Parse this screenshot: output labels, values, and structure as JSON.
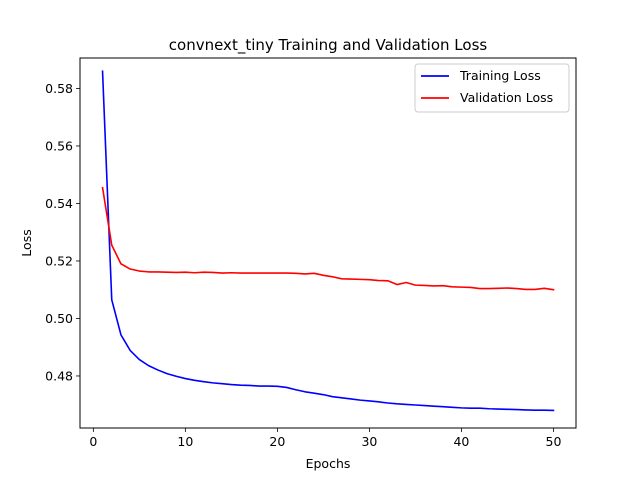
{
  "chart_data": {
    "type": "line",
    "title": "convnext_tiny Training and Validation Loss",
    "xlabel": "Epochs",
    "ylabel": "Loss",
    "xlim": [
      -1.45,
      52.45
    ],
    "ylim": [
      0.4619,
      0.5906
    ],
    "xticks": [
      0,
      10,
      20,
      30,
      40,
      50
    ],
    "yticks": [
      0.48,
      0.5,
      0.52,
      0.54,
      0.56,
      0.58
    ],
    "ytick_labels": [
      "0.48",
      "0.50",
      "0.52",
      "0.54",
      "0.56",
      "0.58"
    ],
    "grid": false,
    "legend_position": "upper right",
    "x": [
      1,
      2,
      3,
      4,
      5,
      6,
      7,
      8,
      9,
      10,
      11,
      12,
      13,
      14,
      15,
      16,
      17,
      18,
      19,
      20,
      21,
      22,
      23,
      24,
      25,
      26,
      27,
      28,
      29,
      30,
      31,
      32,
      33,
      34,
      35,
      36,
      37,
      38,
      39,
      40,
      41,
      42,
      43,
      44,
      45,
      46,
      47,
      48,
      49,
      50
    ],
    "series": [
      {
        "name": "Training Loss",
        "color": "#0000ff",
        "values": [
          0.586,
          0.5065,
          0.4943,
          0.4889,
          0.4857,
          0.4836,
          0.4821,
          0.4808,
          0.4799,
          0.4791,
          0.4785,
          0.478,
          0.4776,
          0.4773,
          0.477,
          0.4768,
          0.4767,
          0.4765,
          0.4765,
          0.4764,
          0.476,
          0.4752,
          0.4745,
          0.474,
          0.4735,
          0.4728,
          0.4724,
          0.472,
          0.4716,
          0.4713,
          0.471,
          0.4706,
          0.4703,
          0.4701,
          0.4699,
          0.4697,
          0.4695,
          0.4693,
          0.4691,
          0.4689,
          0.4688,
          0.4688,
          0.4686,
          0.4685,
          0.4684,
          0.4683,
          0.4682,
          0.4681,
          0.4681,
          0.468
        ]
      },
      {
        "name": "Validation Loss",
        "color": "#ff0000",
        "values": [
          0.5455,
          0.5255,
          0.519,
          0.5172,
          0.5165,
          0.5162,
          0.5162,
          0.5161,
          0.516,
          0.5161,
          0.5159,
          0.5161,
          0.516,
          0.5158,
          0.5159,
          0.5158,
          0.5158,
          0.5158,
          0.5158,
          0.5158,
          0.5158,
          0.5157,
          0.5155,
          0.5157,
          0.515,
          0.5145,
          0.5138,
          0.5137,
          0.5136,
          0.5135,
          0.5132,
          0.5131,
          0.5118,
          0.5125,
          0.5116,
          0.5115,
          0.5113,
          0.5114,
          0.511,
          0.5109,
          0.5108,
          0.5104,
          0.5104,
          0.5105,
          0.5106,
          0.5104,
          0.5101,
          0.5101,
          0.5105,
          0.51
        ]
      }
    ]
  }
}
